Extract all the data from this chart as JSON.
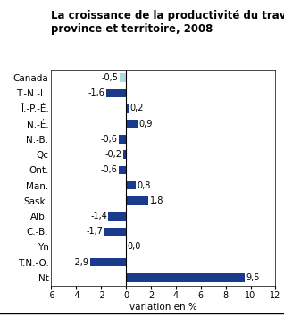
{
  "title_line1": "La croissance de la productivité du travail par",
  "title_line2": "province et territoire, 2008",
  "categories": [
    "Canada",
    "T.-N.-L.",
    "Î.-P.-É.",
    "N.-É.",
    "N.-B.",
    "Qc",
    "Ont.",
    "Man.",
    "Sask.",
    "Alb.",
    "C.-B.",
    "Yn",
    "T.N.-O.",
    "Nt"
  ],
  "values": [
    -0.5,
    -1.6,
    0.2,
    0.9,
    -0.6,
    -0.2,
    -0.6,
    0.8,
    1.8,
    -1.4,
    -1.7,
    0.0,
    -2.9,
    9.5
  ],
  "bar_colors": [
    "#add8e6",
    "#1a3a8c",
    "#1a3a8c",
    "#1a3a8c",
    "#1a3a8c",
    "#1a3a8c",
    "#1a3a8c",
    "#1a3a8c",
    "#1a3a8c",
    "#1a3a8c",
    "#1a3a8c",
    "#1a3a8c",
    "#1a3a8c",
    "#1a3a8c"
  ],
  "xlabel": "variation en %",
  "xlim": [
    -6,
    12
  ],
  "xticks": [
    -6,
    -4,
    -2,
    0,
    2,
    4,
    6,
    8,
    10,
    12
  ],
  "background_color": "#ffffff",
  "title_fontsize": 8.5,
  "label_fontsize": 7.5,
  "tick_fontsize": 7,
  "value_fontsize": 7
}
